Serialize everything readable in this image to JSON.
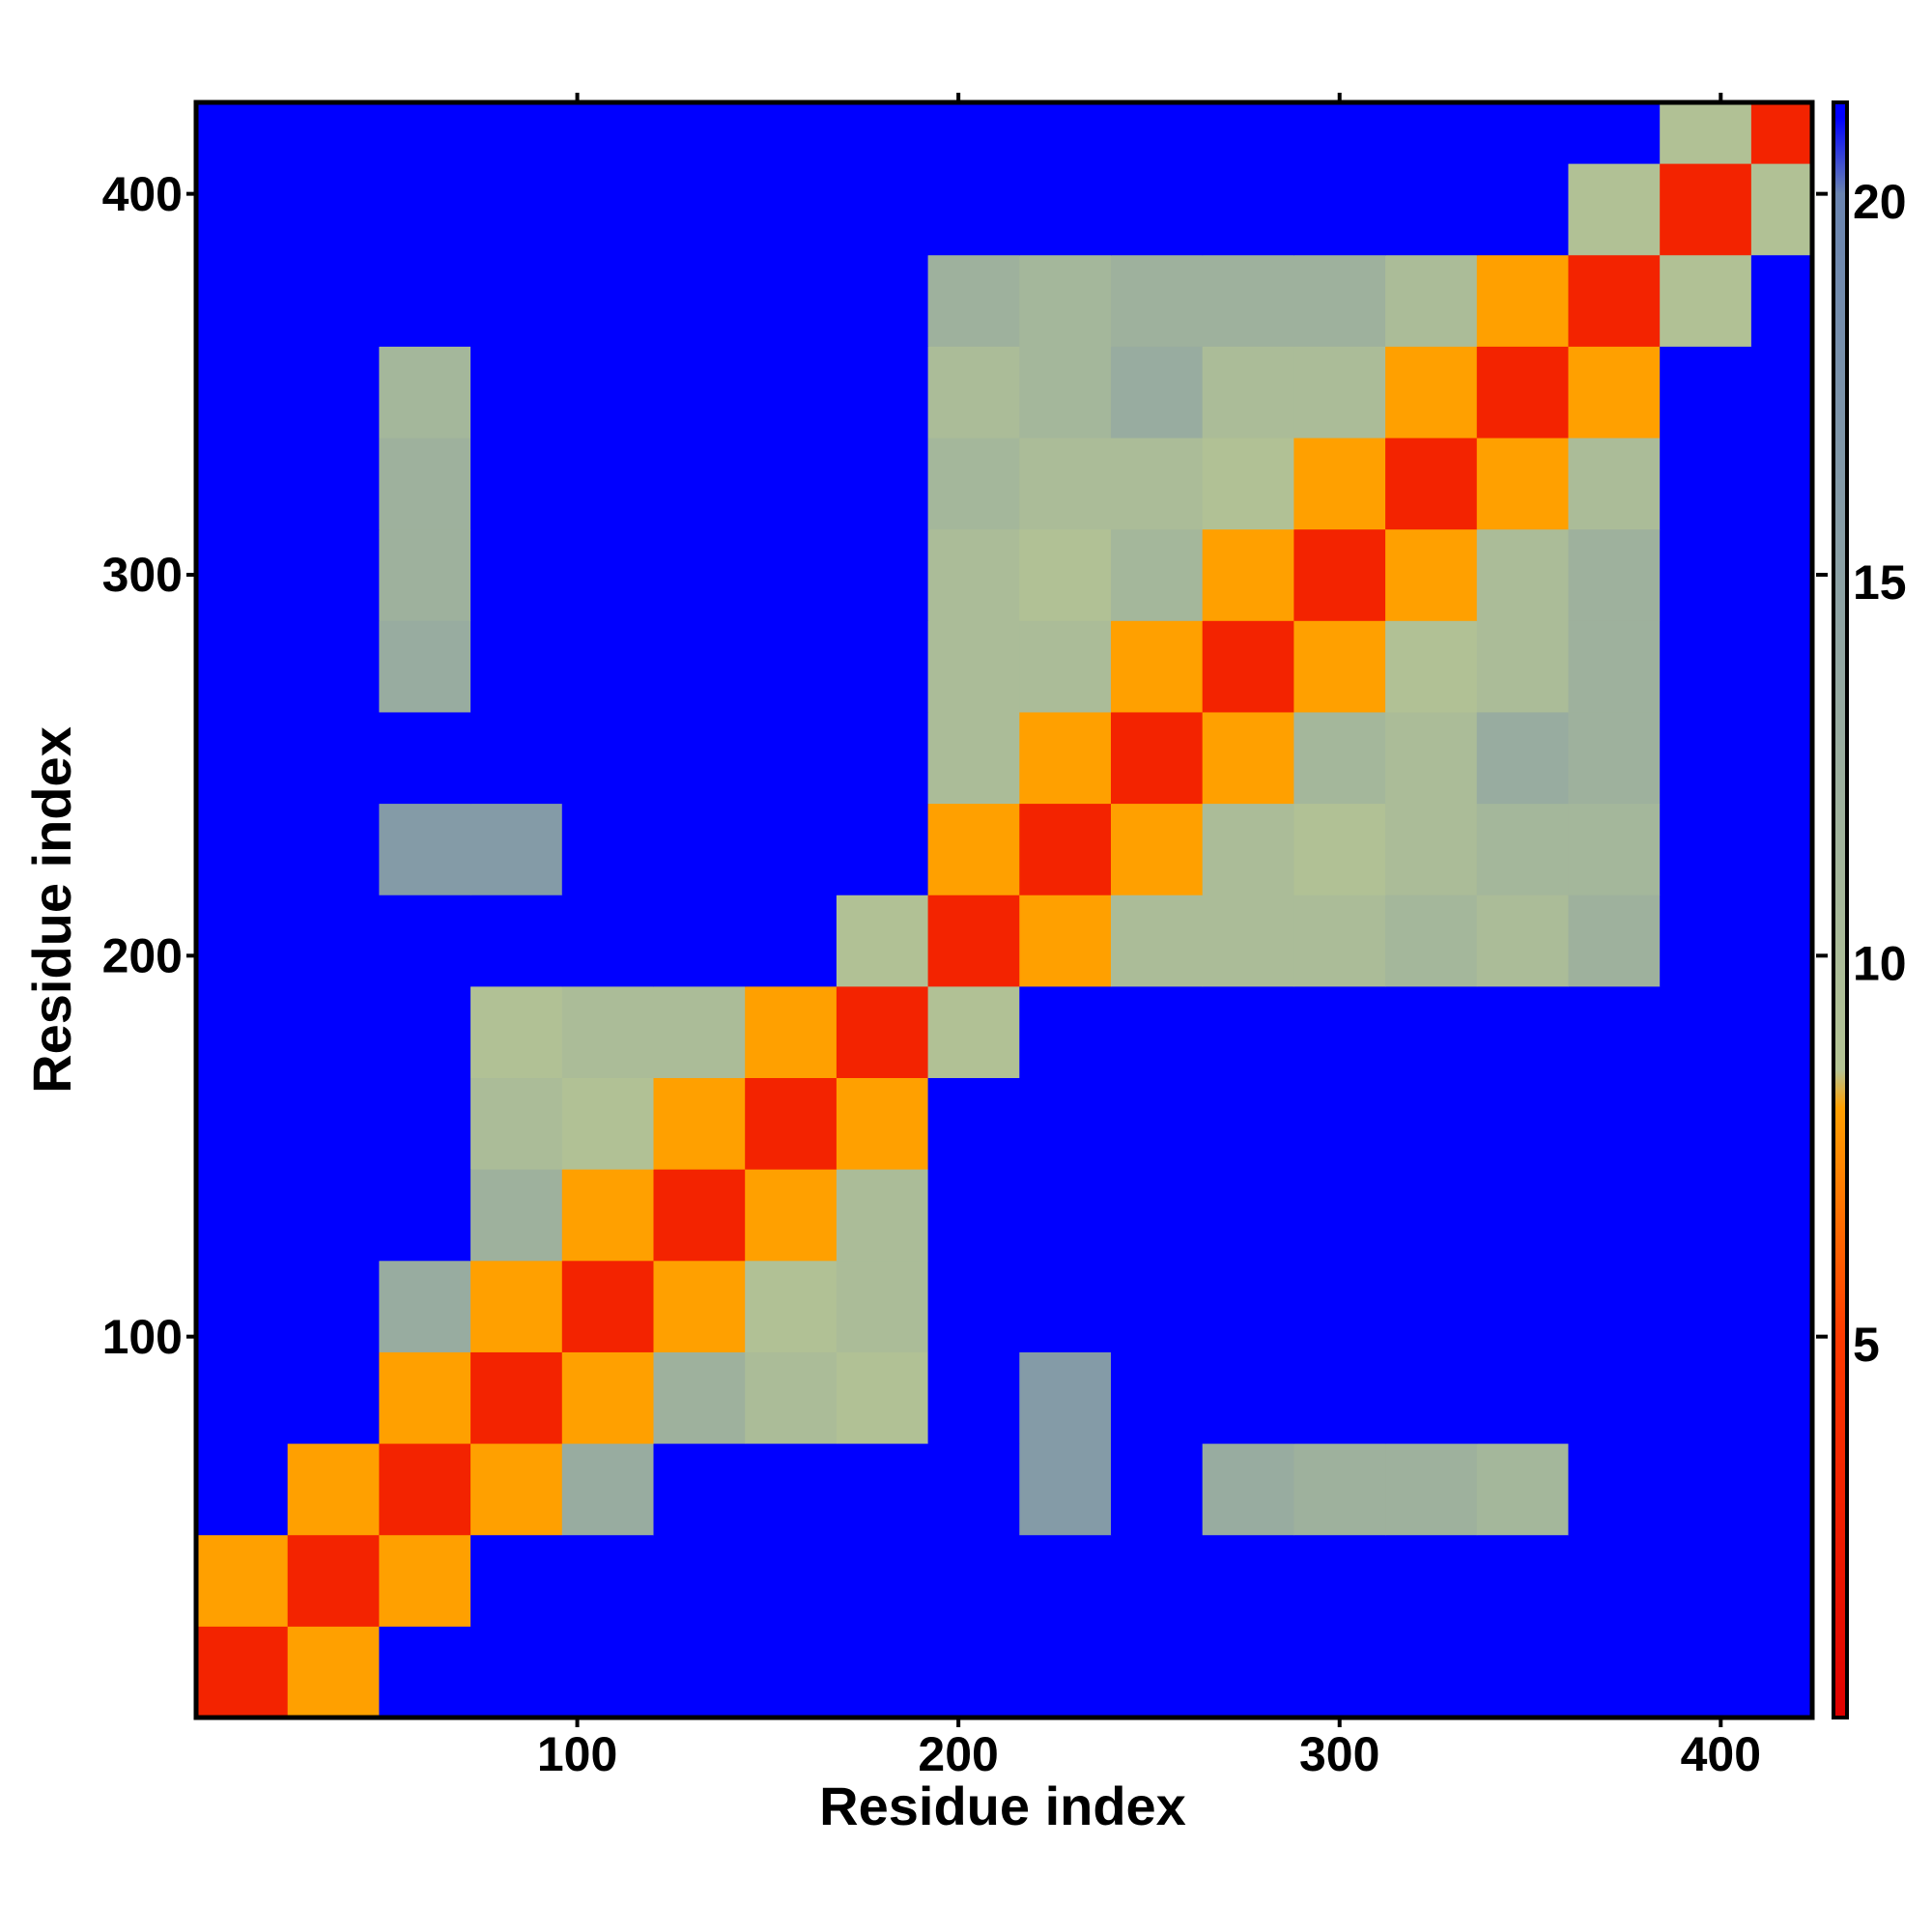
{
  "chart_data": {
    "type": "heatmap",
    "xlabel": "Residue index",
    "ylabel": "Residue index",
    "bins": [
      0,
      24,
      48,
      72,
      96,
      120,
      144,
      168,
      192,
      216,
      240,
      264,
      288,
      312,
      336,
      360,
      384,
      408,
      424
    ],
    "z": [
      [
        3,
        8,
        21,
        21,
        21,
        21,
        21,
        21,
        21,
        21,
        21,
        21,
        21,
        21,
        21,
        21,
        21,
        21
      ],
      [
        8,
        3,
        8,
        21,
        21,
        21,
        21,
        21,
        21,
        21,
        21,
        21,
        21,
        21,
        21,
        21,
        21,
        21
      ],
      [
        21,
        8,
        3,
        8,
        13,
        21,
        21,
        21,
        21,
        16,
        21,
        13,
        12,
        12,
        11,
        21,
        21,
        21
      ],
      [
        21,
        21,
        8,
        3,
        8,
        12,
        10,
        9,
        21,
        16,
        21,
        21,
        21,
        21,
        21,
        21,
        21,
        21
      ],
      [
        21,
        21,
        13,
        8,
        3,
        8,
        9,
        10,
        21,
        21,
        21,
        21,
        21,
        21,
        21,
        21,
        21,
        21
      ],
      [
        21,
        21,
        21,
        12,
        8,
        3,
        8,
        10,
        21,
        21,
        21,
        21,
        21,
        21,
        21,
        21,
        21,
        21
      ],
      [
        21,
        21,
        21,
        10,
        9,
        8,
        3,
        8,
        21,
        21,
        21,
        21,
        21,
        21,
        21,
        21,
        21,
        21
      ],
      [
        21,
        21,
        21,
        9,
        10,
        10,
        8,
        3,
        9,
        21,
        21,
        21,
        21,
        21,
        21,
        21,
        21,
        21
      ],
      [
        21,
        21,
        21,
        21,
        21,
        21,
        21,
        9,
        3,
        8,
        10,
        10,
        10,
        11,
        10,
        12,
        21,
        21
      ],
      [
        21,
        21,
        16,
        16,
        21,
        21,
        21,
        21,
        8,
        3,
        8,
        10,
        9,
        10,
        11,
        11,
        21,
        21
      ],
      [
        21,
        21,
        21,
        21,
        21,
        21,
        21,
        21,
        10,
        8,
        3,
        8,
        11,
        10,
        13,
        12,
        21,
        21
      ],
      [
        21,
        21,
        13,
        21,
        21,
        21,
        21,
        21,
        10,
        10,
        8,
        3,
        8,
        9,
        10,
        12,
        21,
        21
      ],
      [
        21,
        21,
        12,
        21,
        21,
        21,
        21,
        21,
        10,
        9,
        11,
        8,
        3,
        8,
        10,
        12,
        21,
        21
      ],
      [
        21,
        21,
        12,
        21,
        21,
        21,
        21,
        21,
        11,
        10,
        10,
        9,
        8,
        3,
        8,
        10,
        21,
        21
      ],
      [
        21,
        21,
        11,
        21,
        21,
        21,
        21,
        21,
        10,
        11,
        13,
        10,
        10,
        8,
        3,
        8,
        21,
        21
      ],
      [
        21,
        21,
        21,
        21,
        21,
        21,
        21,
        21,
        12,
        11,
        12,
        12,
        12,
        10,
        8,
        3,
        9,
        21
      ],
      [
        21,
        21,
        21,
        21,
        21,
        21,
        21,
        21,
        21,
        21,
        21,
        21,
        21,
        21,
        21,
        9,
        3,
        9
      ],
      [
        21,
        21,
        21,
        21,
        21,
        21,
        21,
        21,
        21,
        21,
        21,
        21,
        21,
        21,
        21,
        21,
        9,
        3
      ]
    ],
    "xlim": [
      0,
      424
    ],
    "ylim": [
      0,
      424
    ],
    "xticks": [
      100,
      200,
      300,
      400
    ],
    "yticks": [
      100,
      200,
      300,
      400
    ],
    "zlim": [
      0,
      21.2
    ],
    "zticks": [
      5,
      10,
      15,
      20
    ],
    "colorscale": [
      [
        0,
        "#e00000"
      ],
      [
        5,
        "#ff3a00"
      ],
      [
        8,
        "#ffa000"
      ],
      [
        8.5,
        "#b4c494"
      ],
      [
        13,
        "#98aca0"
      ],
      [
        20,
        "#6a84b0"
      ],
      [
        21,
        "#0000ff"
      ]
    ]
  }
}
